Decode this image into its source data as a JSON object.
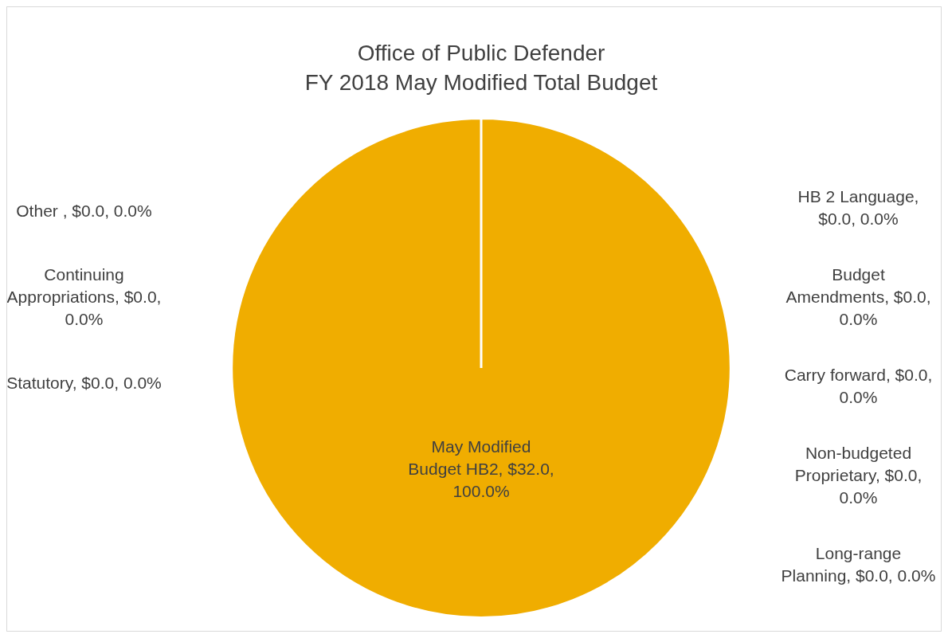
{
  "chart_data": {
    "type": "pie",
    "title": "Office of Public Defender",
    "subtitle": "FY 2018 May Modified Total Budget",
    "categories": [
      "May Modified Budget HB2",
      "HB 2 Language",
      "Budget Amendments",
      "Carry forward",
      "Non-budgeted Proprietary",
      "Long-range Planning",
      "Statutory",
      "Continuing Appropriations",
      "Other "
    ],
    "values": [
      32.0,
      0,
      0,
      0,
      0,
      0,
      0,
      0,
      0
    ],
    "value_labels": [
      ", $32.0, 100.0%",
      ", $0.0, 0.0%",
      ", $0.0, 0.0%",
      ", $0.0, 0.0%",
      ", $0.0, 0.0%",
      ", $0.0, 0.0%",
      ", $0.0, 0.0%",
      ", $0.0, 0.0%",
      ", $0.0, 0.0%"
    ],
    "colors": [
      "#f0ad00",
      "#4472c4",
      "#ed7d31",
      "#a5a5a5",
      "#5b9bd5",
      "#70ad47",
      "#264478",
      "#9e480e",
      "#636363"
    ],
    "legend": false
  }
}
